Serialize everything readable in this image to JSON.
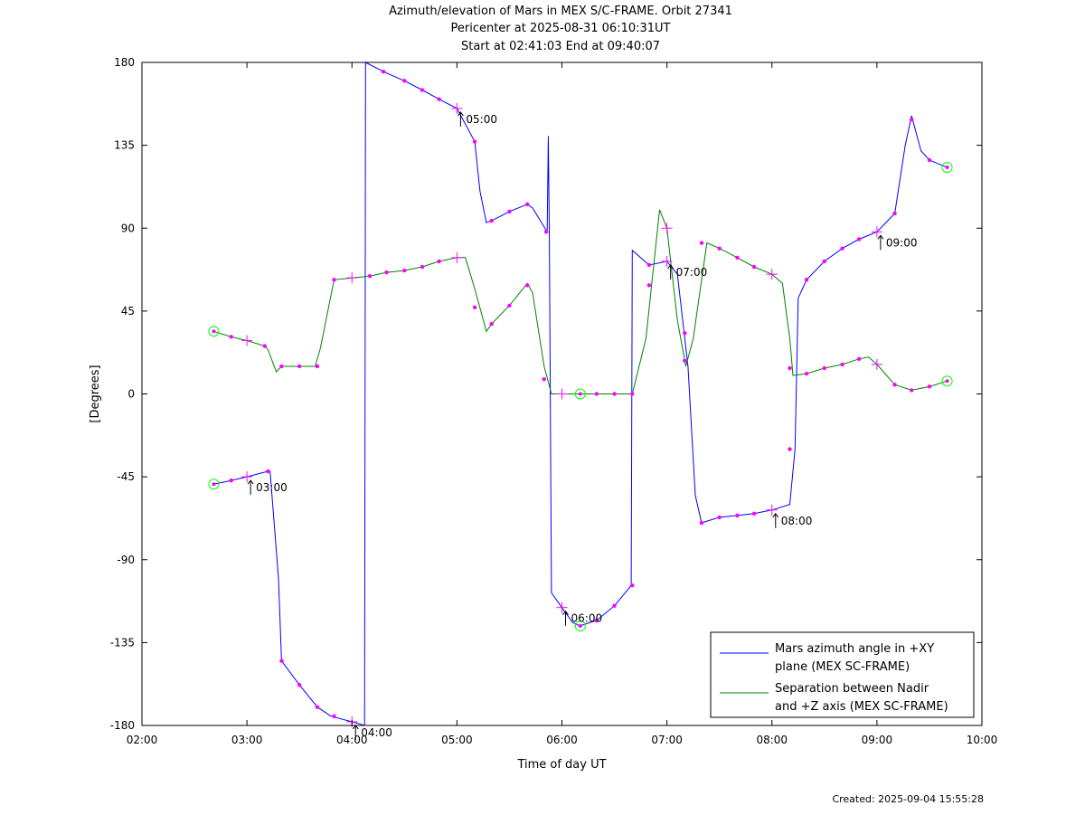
{
  "header": {
    "title_line1": "Azimuth/elevation of Mars in MEX S/C-FRAME.  Orbit 27341",
    "title_line2": "Pericenter at 2025-08-31 06:10:31UT",
    "title_line3": "Start at 02:41:03 End at 09:40:07"
  },
  "footer": {
    "created": "Created: 2025-09-04 15:55:28"
  },
  "chart_data": {
    "type": "line",
    "xlabel": "Time of day UT",
    "ylabel": "[Degrees]",
    "xlim": [
      2.0,
      10.0
    ],
    "ylim": [
      -180,
      180
    ],
    "x_ticks": [
      2,
      3,
      4,
      5,
      6,
      7,
      8,
      9,
      10
    ],
    "x_tick_labels": [
      "02:00",
      "03:00",
      "04:00",
      "05:00",
      "06:00",
      "07:00",
      "08:00",
      "09:00",
      "10:00"
    ],
    "y_ticks": [
      180,
      135,
      90,
      45,
      0,
      -45,
      -90,
      -135,
      -180
    ],
    "y_tick_labels": [
      "180",
      "135",
      "90",
      "45",
      "0",
      "-45",
      "-90",
      "-135",
      "-180"
    ],
    "grid": false,
    "legend_position": "bottom-right",
    "colors": {
      "azimuth": "#0000ff",
      "separation": "#008000",
      "marker": "#ff00ff",
      "endpoint": "#00ff00"
    },
    "series": [
      {
        "name": "Mars azimuth angle in +XY plane (MEX SC-FRAME)",
        "legend_line1": "Mars azimuth angle in +XY",
        "legend_line2": "plane (MEX SC-FRAME)",
        "color": "#0000ff",
        "points": [
          [
            2.684,
            -49
          ],
          [
            2.85,
            -47
          ],
          [
            3.0,
            -45
          ],
          [
            3.2,
            -42
          ],
          [
            3.22,
            -42
          ],
          [
            3.3,
            -100
          ],
          [
            3.33,
            -145
          ],
          [
            3.5,
            -158
          ],
          [
            3.67,
            -170
          ],
          [
            3.8,
            -175
          ],
          [
            4.0,
            -178
          ],
          [
            4.12,
            -180
          ],
          [
            4.13,
            180
          ],
          [
            4.3,
            175
          ],
          [
            4.5,
            170
          ],
          [
            4.67,
            165
          ],
          [
            4.83,
            160
          ],
          [
            5.0,
            155
          ],
          [
            5.17,
            137
          ],
          [
            5.22,
            110
          ],
          [
            5.28,
            93
          ],
          [
            5.33,
            94
          ],
          [
            5.5,
            99
          ],
          [
            5.67,
            103
          ],
          [
            5.72,
            101
          ],
          [
            5.86,
            88
          ],
          [
            5.87,
            140
          ],
          [
            5.88,
            85
          ],
          [
            5.9,
            -108
          ],
          [
            6.0,
            -116
          ],
          [
            6.1,
            -124
          ],
          [
            6.17,
            -126
          ],
          [
            6.33,
            -123
          ],
          [
            6.5,
            -115
          ],
          [
            6.66,
            -104
          ],
          [
            6.67,
            78
          ],
          [
            6.83,
            70
          ],
          [
            7.0,
            72
          ],
          [
            7.1,
            65
          ],
          [
            7.2,
            15
          ],
          [
            7.27,
            -55
          ],
          [
            7.33,
            -70
          ],
          [
            7.5,
            -67
          ],
          [
            7.67,
            -66
          ],
          [
            7.83,
            -65
          ],
          [
            8.0,
            -63
          ],
          [
            8.17,
            -60
          ],
          [
            8.22,
            -30
          ],
          [
            8.25,
            52
          ],
          [
            8.33,
            62
          ],
          [
            8.5,
            72
          ],
          [
            8.67,
            79
          ],
          [
            8.83,
            84
          ],
          [
            9.0,
            88
          ],
          [
            9.17,
            98
          ],
          [
            9.27,
            135
          ],
          [
            9.33,
            151
          ],
          [
            9.42,
            132
          ],
          [
            9.5,
            127
          ],
          [
            9.669,
            123
          ]
        ]
      },
      {
        "name": "Separation between Nadir and +Z axis (MEX SC-FRAME)",
        "legend_line1": "Separation between Nadir",
        "legend_line2": "and +Z axis (MEX SC-FRAME)",
        "color": "#008000",
        "points": [
          [
            2.684,
            34
          ],
          [
            2.85,
            31
          ],
          [
            3.0,
            29
          ],
          [
            3.17,
            26
          ],
          [
            3.2,
            24
          ],
          [
            3.28,
            12
          ],
          [
            3.33,
            15
          ],
          [
            3.5,
            15
          ],
          [
            3.65,
            15
          ],
          [
            3.7,
            25
          ],
          [
            3.83,
            62
          ],
          [
            4.0,
            63
          ],
          [
            4.17,
            64
          ],
          [
            4.33,
            66
          ],
          [
            4.5,
            67
          ],
          [
            4.67,
            69
          ],
          [
            4.83,
            72
          ],
          [
            5.0,
            74
          ],
          [
            5.08,
            74
          ],
          [
            5.17,
            57
          ],
          [
            5.28,
            34
          ],
          [
            5.33,
            38
          ],
          [
            5.5,
            48
          ],
          [
            5.67,
            60
          ],
          [
            5.72,
            55
          ],
          [
            5.83,
            15
          ],
          [
            5.9,
            0
          ],
          [
            6.0,
            0
          ],
          [
            6.17,
            0
          ],
          [
            6.33,
            0
          ],
          [
            6.5,
            0
          ],
          [
            6.67,
            0
          ],
          [
            6.8,
            30
          ],
          [
            6.93,
            100
          ],
          [
            7.0,
            90
          ],
          [
            7.1,
            40
          ],
          [
            7.18,
            15
          ],
          [
            7.25,
            30
          ],
          [
            7.38,
            82
          ],
          [
            7.5,
            79
          ],
          [
            7.67,
            74
          ],
          [
            7.83,
            69
          ],
          [
            8.0,
            65
          ],
          [
            8.1,
            60
          ],
          [
            8.17,
            30
          ],
          [
            8.2,
            10
          ],
          [
            8.33,
            11
          ],
          [
            8.5,
            14
          ],
          [
            8.67,
            16
          ],
          [
            8.83,
            19
          ],
          [
            8.92,
            20
          ],
          [
            9.0,
            16
          ],
          [
            9.17,
            5
          ],
          [
            9.33,
            2
          ],
          [
            9.5,
            4
          ],
          [
            9.669,
            7
          ]
        ]
      }
    ],
    "hour_annotations": [
      {
        "label": "03:00",
        "x": 3.0,
        "y": -45
      },
      {
        "label": "04:00",
        "x": 4.0,
        "y": -178
      },
      {
        "label": "05:00",
        "x": 5.0,
        "y": 155
      },
      {
        "label": "06:00",
        "x": 6.0,
        "y": -116
      },
      {
        "label": "07:00",
        "x": 7.0,
        "y": 72
      },
      {
        "label": "08:00",
        "x": 8.0,
        "y": -63
      },
      {
        "label": "09:00",
        "x": 9.0,
        "y": 88
      }
    ],
    "plus_markers": [
      [
        3.0,
        -45
      ],
      [
        3.0,
        29
      ],
      [
        4.0,
        -178
      ],
      [
        4.0,
        63
      ],
      [
        5.0,
        155
      ],
      [
        5.0,
        74
      ],
      [
        6.0,
        -116
      ],
      [
        6.0,
        0
      ],
      [
        7.0,
        90
      ],
      [
        7.0,
        72
      ],
      [
        8.0,
        -63
      ],
      [
        8.0,
        65
      ],
      [
        9.0,
        88
      ],
      [
        9.0,
        16
      ]
    ],
    "endpoint_markers": [
      [
        2.684,
        -49
      ],
      [
        2.684,
        34
      ],
      [
        9.669,
        123
      ],
      [
        9.669,
        7
      ],
      [
        6.175,
        0
      ],
      [
        6.175,
        -126
      ]
    ],
    "dot_markers": [
      [
        2.85,
        -47
      ],
      [
        3.2,
        -42
      ],
      [
        3.33,
        -145
      ],
      [
        3.5,
        -158
      ],
      [
        3.67,
        -170
      ],
      [
        3.83,
        -175
      ],
      [
        4.3,
        175
      ],
      [
        4.5,
        170
      ],
      [
        4.67,
        165
      ],
      [
        4.83,
        160
      ],
      [
        5.17,
        137
      ],
      [
        5.33,
        94
      ],
      [
        5.5,
        99
      ],
      [
        5.67,
        103
      ],
      [
        5.85,
        88
      ],
      [
        6.33,
        -123
      ],
      [
        6.5,
        -115
      ],
      [
        6.67,
        -104
      ],
      [
        6.83,
        70
      ],
      [
        7.17,
        33
      ],
      [
        7.33,
        -70
      ],
      [
        7.5,
        -67
      ],
      [
        7.67,
        -66
      ],
      [
        7.83,
        -65
      ],
      [
        8.17,
        -30
      ],
      [
        8.33,
        62
      ],
      [
        8.5,
        72
      ],
      [
        8.67,
        79
      ],
      [
        8.83,
        84
      ],
      [
        9.17,
        98
      ],
      [
        9.33,
        149
      ],
      [
        9.5,
        127
      ],
      [
        2.85,
        31
      ],
      [
        3.17,
        26
      ],
      [
        3.33,
        15
      ],
      [
        3.5,
        15
      ],
      [
        3.67,
        15
      ],
      [
        3.83,
        62
      ],
      [
        4.17,
        64
      ],
      [
        4.33,
        66
      ],
      [
        4.5,
        67
      ],
      [
        4.67,
        69
      ],
      [
        4.83,
        72
      ],
      [
        5.17,
        47
      ],
      [
        5.33,
        38
      ],
      [
        5.5,
        48
      ],
      [
        5.67,
        59
      ],
      [
        5.83,
        8
      ],
      [
        6.33,
        0
      ],
      [
        6.5,
        0
      ],
      [
        6.67,
        0
      ],
      [
        6.83,
        59
      ],
      [
        7.17,
        18
      ],
      [
        7.5,
        79
      ],
      [
        7.67,
        74
      ],
      [
        7.83,
        69
      ],
      [
        8.17,
        14
      ],
      [
        8.33,
        11
      ],
      [
        8.5,
        14
      ],
      [
        8.67,
        16
      ],
      [
        8.83,
        19
      ],
      [
        9.17,
        5
      ],
      [
        9.33,
        2
      ],
      [
        9.5,
        4
      ],
      [
        7.33,
        82
      ]
    ]
  }
}
